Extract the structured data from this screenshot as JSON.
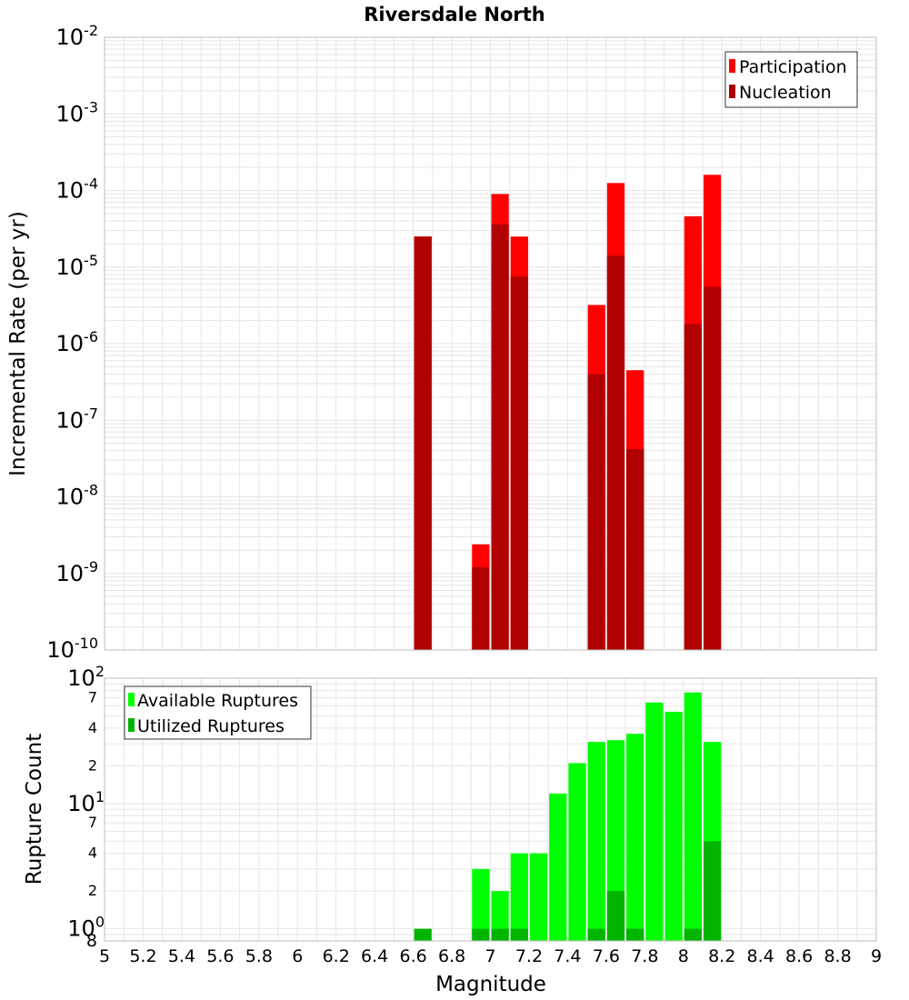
{
  "colors": {
    "participation": "#ff0000",
    "nucleation": "#b00000",
    "available": "#00ff00",
    "utilized": "#00b400",
    "grid": "#e6e6e6",
    "frame": "#bdbdbd"
  },
  "chart_data": [
    {
      "type": "bar",
      "title": "Riversdale North",
      "ylabel": "Incremental Rate (per yr)",
      "yscale": "log",
      "ylim": [
        1e-10,
        0.01
      ],
      "xlim": [
        5,
        9
      ],
      "legend": "top-right",
      "grid": true,
      "y_tick_labels": [
        {
          "exp": -10,
          "base": "10",
          "sup": "-10"
        },
        {
          "exp": -9,
          "base": "10",
          "sup": "-9"
        },
        {
          "exp": -8,
          "base": "10",
          "sup": "-8"
        },
        {
          "exp": -7,
          "base": "10",
          "sup": "-7"
        },
        {
          "exp": -6,
          "base": "10",
          "sup": "-6"
        },
        {
          "exp": -5,
          "base": "10",
          "sup": "-5"
        },
        {
          "exp": -4,
          "base": "10",
          "sup": "-4"
        },
        {
          "exp": -3,
          "base": "10",
          "sup": "-3"
        },
        {
          "exp": -2,
          "base": "10",
          "sup": "-2"
        }
      ],
      "series": [
        {
          "name": "Participation",
          "x": [
            6.65,
            6.95,
            7.05,
            7.15,
            7.55,
            7.65,
            7.75,
            8.05,
            8.15
          ],
          "values": [
            2.5e-05,
            2.4e-09,
            9e-05,
            2.5e-05,
            3.2e-06,
            0.000125,
            4.5e-07,
            4.6e-05,
            0.00016
          ]
        },
        {
          "name": "Nucleation",
          "x": [
            6.65,
            6.95,
            7.05,
            7.15,
            7.55,
            7.65,
            7.75,
            8.05,
            8.15
          ],
          "values": [
            2.5e-05,
            1.2e-09,
            3.6e-05,
            7.5e-06,
            4e-07,
            1.4e-05,
            4.2e-08,
            1.8e-06,
            5.5e-06
          ]
        }
      ]
    },
    {
      "type": "bar",
      "ylabel": "Rupture Count",
      "xlabel": "Magnitude",
      "yscale": "log",
      "ylim": [
        0.8,
        100
      ],
      "xlim": [
        5,
        9
      ],
      "legend": "top-left",
      "grid": true,
      "x_tick_labels": [
        "5",
        "5.2",
        "5.4",
        "5.6",
        "5.8",
        "6",
        "6.2",
        "6.4",
        "6.6",
        "6.8",
        "7",
        "7.2",
        "7.4",
        "7.6",
        "7.8",
        "8",
        "8.2",
        "8.4",
        "8.6",
        "8.8",
        "9"
      ],
      "y_major_labels": [
        {
          "v": 1,
          "base": "10",
          "sup": "0"
        },
        {
          "v": 10,
          "base": "10",
          "sup": "1"
        },
        {
          "v": 100,
          "base": "10",
          "sup": "2"
        }
      ],
      "y_minor_labels": [
        {
          "v": 0.8,
          "text": "8"
        },
        {
          "v": 2,
          "text": "2"
        },
        {
          "v": 4,
          "text": "4"
        },
        {
          "v": 7,
          "text": "7"
        },
        {
          "v": 20,
          "text": "2"
        },
        {
          "v": 40,
          "text": "4"
        },
        {
          "v": 70,
          "text": "7"
        }
      ],
      "series": [
        {
          "name": "Available Ruptures",
          "x": [
            6.95,
            7.05,
            7.15,
            7.25,
            7.35,
            7.45,
            7.55,
            7.65,
            7.75,
            7.85,
            7.95,
            8.05,
            8.15
          ],
          "values": [
            3,
            2,
            4,
            4,
            12,
            21,
            31,
            32,
            36,
            64,
            54,
            77,
            31
          ]
        },
        {
          "name": "Utilized Ruptures",
          "x": [
            6.65,
            6.95,
            7.05,
            7.15,
            7.55,
            7.65,
            7.75,
            8.05,
            8.15
          ],
          "values": [
            1,
            1,
            1,
            1,
            1,
            2,
            1,
            1,
            5
          ]
        }
      ]
    }
  ]
}
